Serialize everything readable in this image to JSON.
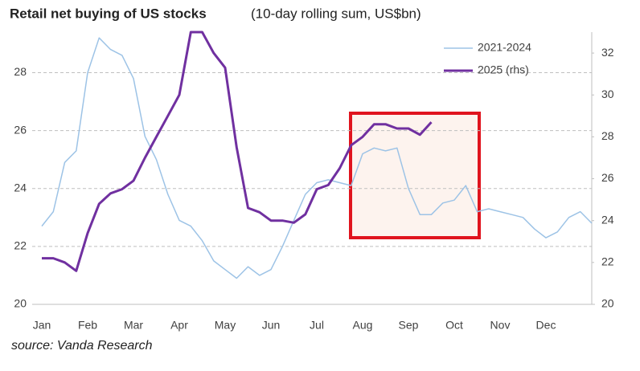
{
  "chart_data": {
    "type": "line",
    "title": "Retail net buying of US stocks",
    "subtitle": "(10-day rolling sum, US$bn)",
    "source": "source: Vanda Research",
    "categories": [
      "Jan",
      null,
      null,
      null,
      "Feb",
      null,
      null,
      null,
      "Mar",
      null,
      null,
      null,
      "Apr",
      null,
      null,
      null,
      "May",
      null,
      null,
      null,
      "Jun",
      null,
      null,
      null,
      "Jul",
      null,
      null,
      null,
      "Aug",
      null,
      null,
      null,
      "Sep",
      null,
      null,
      null,
      "Oct",
      null,
      null,
      null,
      "Nov",
      null,
      null,
      null,
      "Dec",
      null,
      null,
      null,
      null
    ],
    "series": [
      {
        "name": "2021-2024",
        "color": "#9dc3e6",
        "axis": "y",
        "values": [
          22.7,
          23.2,
          24.9,
          25.3,
          28.0,
          29.2,
          28.8,
          28.6,
          27.8,
          25.8,
          25.0,
          23.8,
          22.9,
          22.7,
          22.2,
          21.5,
          21.2,
          20.9,
          21.3,
          21.0,
          21.2,
          22.0,
          22.9,
          23.8,
          24.2,
          24.3,
          24.2,
          24.1,
          25.2,
          25.4,
          25.3,
          25.4,
          24.0,
          23.1,
          23.1,
          23.5,
          23.6,
          24.1,
          23.2,
          23.3,
          23.2,
          23.1,
          23.0,
          22.6,
          22.3,
          22.5,
          23.0,
          23.2,
          22.8
        ]
      },
      {
        "name": "2025 (rhs)",
        "color": "#7030a0",
        "axis": "y2",
        "values": [
          22.2,
          22.2,
          22.0,
          21.6,
          23.4,
          24.8,
          25.3,
          25.5,
          25.9,
          27.0,
          28.0,
          29.0,
          30.0,
          33.0,
          33.0,
          32.0,
          31.3,
          27.5,
          24.6,
          24.4,
          24.0,
          24.0,
          23.9,
          24.3,
          25.5,
          25.7,
          26.5,
          27.6,
          28.0,
          28.6,
          28.6,
          28.4,
          28.4,
          28.1,
          28.7,
          null,
          null,
          null,
          null,
          null,
          null,
          null,
          null,
          null,
          null,
          null,
          null,
          null,
          null
        ]
      }
    ],
    "ylim": [
      20,
      29.4
    ],
    "yticks": [
      20,
      22,
      24,
      26,
      28
    ],
    "y2lim": [
      20,
      33
    ],
    "y2ticks": [
      20,
      22,
      24,
      26,
      28,
      30,
      32
    ],
    "grid": true,
    "legend": "top-right"
  }
}
